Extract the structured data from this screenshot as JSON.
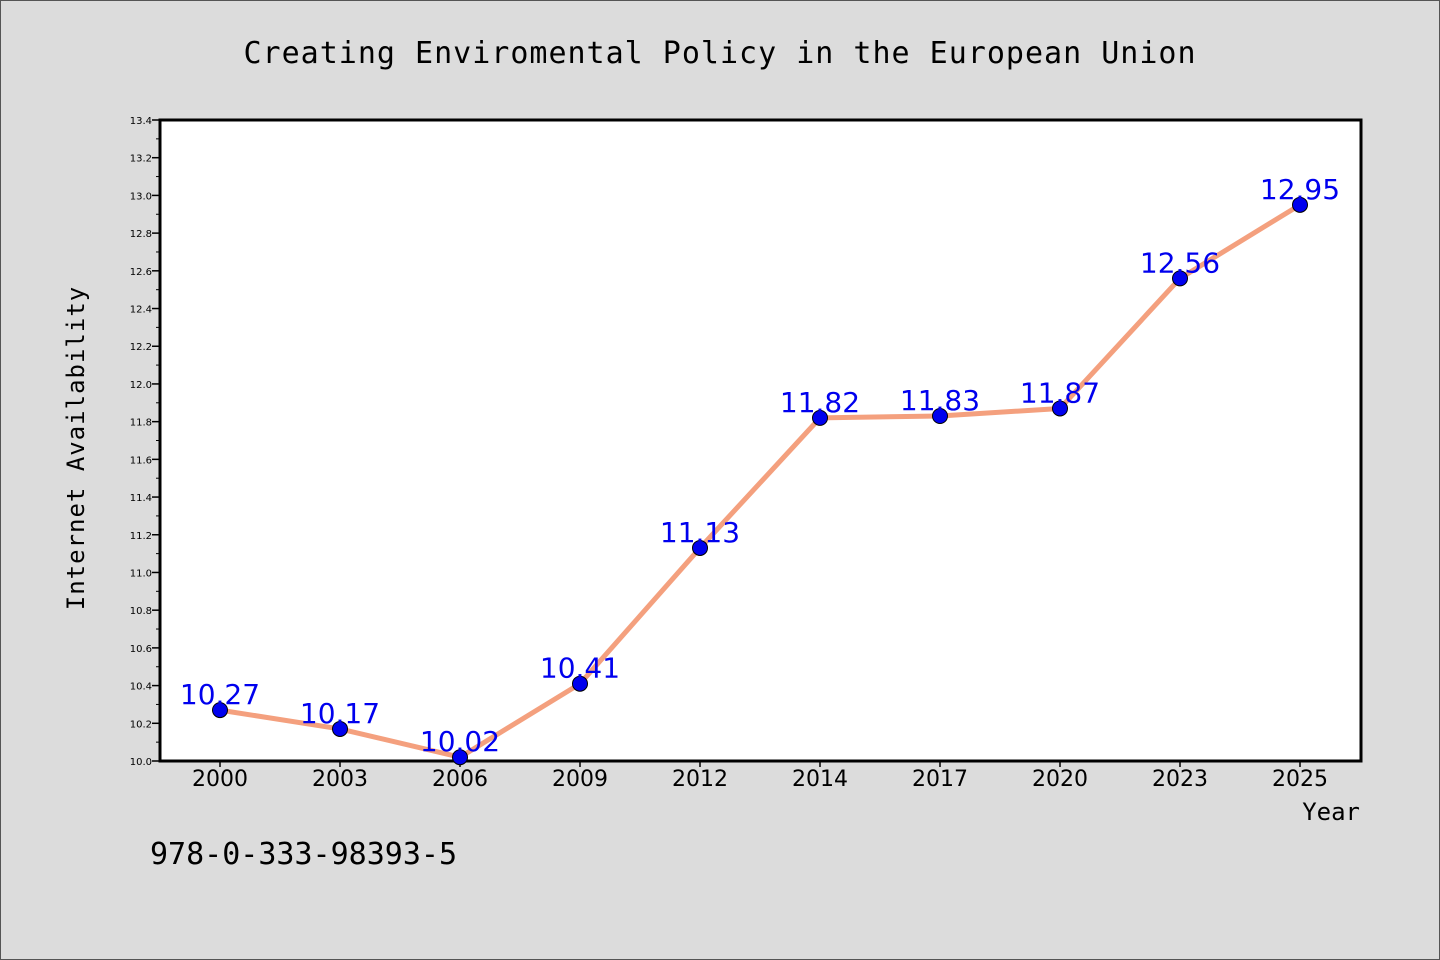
{
  "chart_data": {
    "type": "line",
    "title": "Creating Enviromental Policy in the European Union",
    "xlabel": "Year",
    "ylabel": "Internet Availability",
    "categories": [
      "2000",
      "2003",
      "2006",
      "2009",
      "2012",
      "2014",
      "2017",
      "2020",
      "2023",
      "2025"
    ],
    "series": [
      {
        "values": [
          10.27,
          10.17,
          10.02,
          10.41,
          11.13,
          11.82,
          11.83,
          11.87,
          12.56,
          12.95
        ],
        "data_labels": [
          "10.27",
          "10.17",
          "10.02",
          "10.41",
          "11.13",
          "11.82",
          "11.83",
          "11.87",
          "12.56",
          "12.95"
        ]
      }
    ],
    "ylim": [
      10.0,
      13.4
    ],
    "yticks": [
      "10.0",
      "10.2",
      "10.4",
      "10.6",
      "10.8",
      "11.0",
      "11.2",
      "11.4",
      "11.6",
      "11.8",
      "12.0",
      "12.2",
      "12.4",
      "12.6",
      "12.8",
      "13.0",
      "13.2",
      "13.4"
    ],
    "grid": false,
    "legend": "none",
    "colors": {
      "line": "#f4a07e",
      "marker": "#0000ee",
      "label": "#0000ee",
      "background": "#dcdcdc",
      "plot_background": "#ffffff"
    }
  },
  "footer": {
    "isbn": "978-0-333-98393-5"
  }
}
